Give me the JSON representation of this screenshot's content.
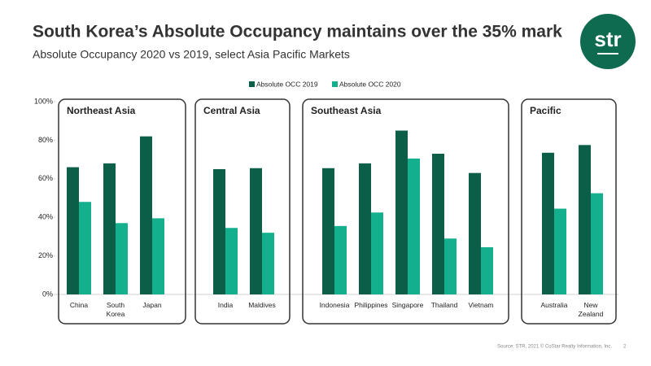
{
  "chart_data": {
    "type": "grouped-bar",
    "title": "South Korea’s Absolute Occupancy maintains over the 35% mark",
    "subtitle": "Absolute Occupancy 2020 vs 2019, select Asia Pacific Markets",
    "logo": "str",
    "source": "Source: STR, 2021 © CoStar Realty Information, Inc.",
    "page_number": "2",
    "groups": [
      {
        "label": "Northeast Asia",
        "categories": [
          "China",
          "South Korea",
          "Japan"
        ]
      },
      {
        "label": "Central Asia",
        "categories": [
          "India",
          "Maldives"
        ]
      },
      {
        "label": "Southeast Asia",
        "categories": [
          "Indonesia",
          "Philippines",
          "Singapore",
          "Thailand",
          "Vietnam"
        ]
      },
      {
        "label": "Pacific",
        "categories": [
          "Australia",
          "New Zealand"
        ]
      }
    ],
    "series": [
      {
        "name": "Absolute OCC 2019",
        "color": "#0b5e47",
        "values": [
          66,
          68,
          82,
          65,
          65.5,
          65.5,
          68,
          85,
          73,
          63,
          73.5,
          77.5
        ]
      },
      {
        "name": "Absolute OCC 2020",
        "color": "#14b08e",
        "values": [
          48,
          37,
          39.5,
          34.5,
          32,
          35.5,
          42.5,
          70.5,
          29,
          24.5,
          44.5,
          52.5
        ]
      }
    ],
    "ylim": [
      0,
      100
    ],
    "yticks": [
      {
        "value": 0,
        "label": "0%"
      },
      {
        "value": 20,
        "label": "20%"
      },
      {
        "value": 40,
        "label": "40%"
      },
      {
        "value": 60,
        "label": "60%"
      },
      {
        "value": 80,
        "label": "80%"
      },
      {
        "value": 100,
        "label": "100%"
      }
    ],
    "legend": "top"
  }
}
